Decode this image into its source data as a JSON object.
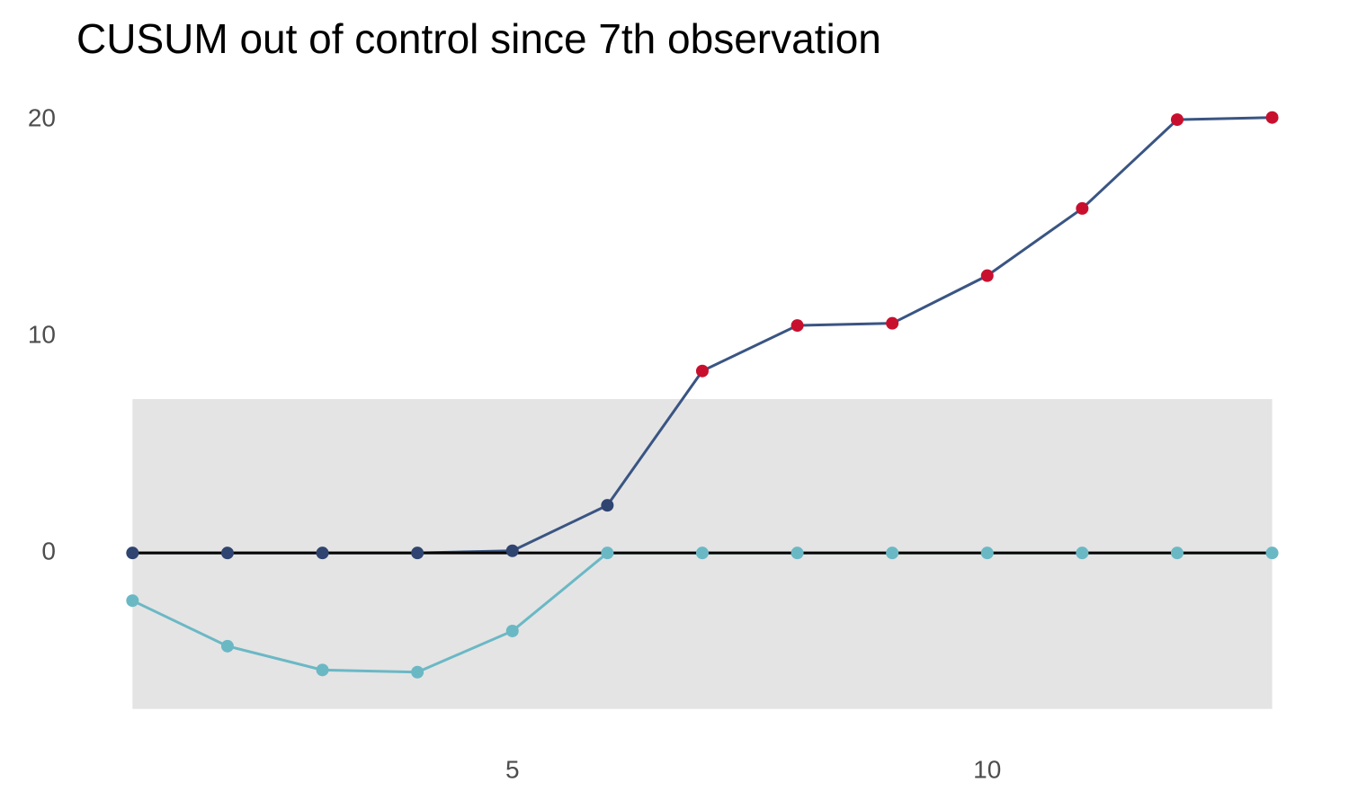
{
  "chart_data": {
    "type": "line",
    "title": "CUSUM out of control since 7th observation",
    "x": [
      1,
      2,
      3,
      4,
      5,
      6,
      7,
      8,
      9,
      10,
      11,
      12,
      13
    ],
    "series": [
      {
        "color": "#3a5583",
        "point_color": "#2f4470",
        "values": [
          0,
          0,
          0,
          0,
          0.1,
          2.2,
          8.4,
          10.5,
          10.6,
          12.8,
          15.9,
          20.0,
          20.1
        ]
      },
      {
        "color": "#6bb8c5",
        "point_color": "#6bb8c5",
        "values": [
          -2.2,
          -4.3,
          -5.4,
          -5.5,
          -3.6,
          0,
          0,
          0,
          0,
          0,
          0,
          0,
          0
        ]
      }
    ],
    "upper_limit": 7.1,
    "lower_limit": -7.2,
    "limit_band_color": "#e4e4e4",
    "center_line": 0,
    "out_of_control_color": "#c8102e",
    "xlim": [
      0.6,
      13.4
    ],
    "ylim": [
      -8,
      21
    ],
    "xticks": [
      5,
      10
    ],
    "yticks": [
      0,
      10,
      20
    ],
    "grid": false
  }
}
